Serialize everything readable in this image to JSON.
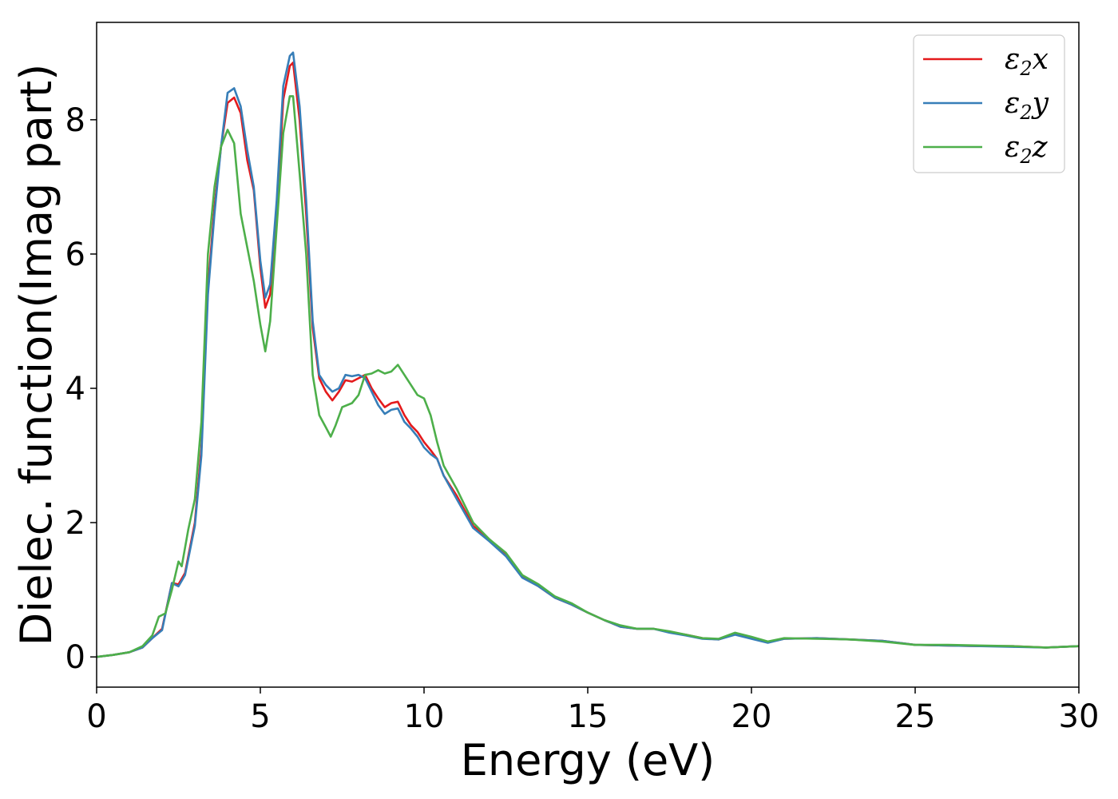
{
  "chart_data": {
    "type": "line",
    "title": "",
    "xlabel": "Energy (eV)",
    "ylabel": "Dielec. function(Imag part)",
    "xlim": [
      0,
      30
    ],
    "ylim": [
      -0.45,
      9.45
    ],
    "xticks": [
      0,
      5,
      10,
      15,
      20,
      25,
      30
    ],
    "yticks": [
      0,
      2,
      4,
      6,
      8
    ],
    "grid": false,
    "legend_position": "top-right",
    "series": [
      {
        "name": "ε2x",
        "legend_base": "ε",
        "legend_sub": "2",
        "legend_suffix": "x",
        "color": "#e41a1c",
        "points": [
          [
            0,
            0
          ],
          [
            0.5,
            0.03
          ],
          [
            1.0,
            0.07
          ],
          [
            1.4,
            0.14
          ],
          [
            1.7,
            0.28
          ],
          [
            2.0,
            0.42
          ],
          [
            2.3,
            1.1
          ],
          [
            2.5,
            1.08
          ],
          [
            2.7,
            1.25
          ],
          [
            3.0,
            2.0
          ],
          [
            3.2,
            3.1
          ],
          [
            3.4,
            5.5
          ],
          [
            3.6,
            6.7
          ],
          [
            3.8,
            7.6
          ],
          [
            4.0,
            8.25
          ],
          [
            4.2,
            8.33
          ],
          [
            4.4,
            8.1
          ],
          [
            4.6,
            7.4
          ],
          [
            4.8,
            6.95
          ],
          [
            5.0,
            5.8
          ],
          [
            5.15,
            5.2
          ],
          [
            5.3,
            5.4
          ],
          [
            5.5,
            6.6
          ],
          [
            5.7,
            8.3
          ],
          [
            5.9,
            8.8
          ],
          [
            6.0,
            8.85
          ],
          [
            6.2,
            8.0
          ],
          [
            6.4,
            6.6
          ],
          [
            6.6,
            4.9
          ],
          [
            6.8,
            4.15
          ],
          [
            7.0,
            3.95
          ],
          [
            7.2,
            3.82
          ],
          [
            7.4,
            3.95
          ],
          [
            7.6,
            4.12
          ],
          [
            7.8,
            4.1
          ],
          [
            8.0,
            4.15
          ],
          [
            8.2,
            4.2
          ],
          [
            8.4,
            4.0
          ],
          [
            8.6,
            3.85
          ],
          [
            8.8,
            3.72
          ],
          [
            9.0,
            3.78
          ],
          [
            9.2,
            3.8
          ],
          [
            9.4,
            3.6
          ],
          [
            9.6,
            3.45
          ],
          [
            9.8,
            3.35
          ],
          [
            10.0,
            3.2
          ],
          [
            10.2,
            3.08
          ],
          [
            10.4,
            2.95
          ],
          [
            10.6,
            2.7
          ],
          [
            11.0,
            2.4
          ],
          [
            11.5,
            1.95
          ],
          [
            12.0,
            1.75
          ],
          [
            12.5,
            1.52
          ],
          [
            13.0,
            1.2
          ],
          [
            13.5,
            1.05
          ],
          [
            14.0,
            0.88
          ],
          [
            14.5,
            0.78
          ],
          [
            15.0,
            0.66
          ],
          [
            15.5,
            0.55
          ],
          [
            16.0,
            0.45
          ],
          [
            16.5,
            0.42
          ],
          [
            17.0,
            0.42
          ],
          [
            17.5,
            0.37
          ],
          [
            18.0,
            0.33
          ],
          [
            18.5,
            0.28
          ],
          [
            19.0,
            0.26
          ],
          [
            19.5,
            0.34
          ],
          [
            20.0,
            0.28
          ],
          [
            20.5,
            0.22
          ],
          [
            21.0,
            0.27
          ],
          [
            22.0,
            0.28
          ],
          [
            23.0,
            0.26
          ],
          [
            24.0,
            0.24
          ],
          [
            25.0,
            0.18
          ],
          [
            26.0,
            0.17
          ],
          [
            27.0,
            0.16
          ],
          [
            28.0,
            0.16
          ],
          [
            29.0,
            0.14
          ],
          [
            30.0,
            0.16
          ]
        ]
      },
      {
        "name": "ε2y",
        "legend_base": "ε",
        "legend_sub": "2",
        "legend_suffix": "y",
        "color": "#377eb8",
        "points": [
          [
            0,
            0
          ],
          [
            0.5,
            0.03
          ],
          [
            1.0,
            0.07
          ],
          [
            1.4,
            0.14
          ],
          [
            1.7,
            0.28
          ],
          [
            2.0,
            0.4
          ],
          [
            2.3,
            1.1
          ],
          [
            2.5,
            1.05
          ],
          [
            2.7,
            1.22
          ],
          [
            3.0,
            1.95
          ],
          [
            3.2,
            3.0
          ],
          [
            3.4,
            5.4
          ],
          [
            3.6,
            6.6
          ],
          [
            3.8,
            7.6
          ],
          [
            4.0,
            8.4
          ],
          [
            4.2,
            8.47
          ],
          [
            4.4,
            8.2
          ],
          [
            4.6,
            7.55
          ],
          [
            4.8,
            7.0
          ],
          [
            5.0,
            5.9
          ],
          [
            5.15,
            5.35
          ],
          [
            5.3,
            5.55
          ],
          [
            5.5,
            6.8
          ],
          [
            5.7,
            8.5
          ],
          [
            5.9,
            8.95
          ],
          [
            6.0,
            9.0
          ],
          [
            6.2,
            8.2
          ],
          [
            6.4,
            6.8
          ],
          [
            6.6,
            5.0
          ],
          [
            6.8,
            4.2
          ],
          [
            7.0,
            4.05
          ],
          [
            7.2,
            3.95
          ],
          [
            7.4,
            4.0
          ],
          [
            7.6,
            4.2
          ],
          [
            7.8,
            4.18
          ],
          [
            8.0,
            4.2
          ],
          [
            8.2,
            4.15
          ],
          [
            8.4,
            3.95
          ],
          [
            8.6,
            3.75
          ],
          [
            8.8,
            3.62
          ],
          [
            9.0,
            3.68
          ],
          [
            9.2,
            3.7
          ],
          [
            9.4,
            3.5
          ],
          [
            9.6,
            3.4
          ],
          [
            9.8,
            3.28
          ],
          [
            10.0,
            3.12
          ],
          [
            10.2,
            3.02
          ],
          [
            10.4,
            2.95
          ],
          [
            10.6,
            2.7
          ],
          [
            11.0,
            2.35
          ],
          [
            11.5,
            1.92
          ],
          [
            12.0,
            1.72
          ],
          [
            12.5,
            1.5
          ],
          [
            13.0,
            1.18
          ],
          [
            13.5,
            1.05
          ],
          [
            14.0,
            0.88
          ],
          [
            14.5,
            0.78
          ],
          [
            15.0,
            0.66
          ],
          [
            15.5,
            0.55
          ],
          [
            16.0,
            0.45
          ],
          [
            16.5,
            0.42
          ],
          [
            17.0,
            0.42
          ],
          [
            17.5,
            0.36
          ],
          [
            18.0,
            0.32
          ],
          [
            18.5,
            0.27
          ],
          [
            19.0,
            0.26
          ],
          [
            19.5,
            0.33
          ],
          [
            20.0,
            0.27
          ],
          [
            20.5,
            0.21
          ],
          [
            21.0,
            0.27
          ],
          [
            22.0,
            0.28
          ],
          [
            23.0,
            0.26
          ],
          [
            24.0,
            0.24
          ],
          [
            25.0,
            0.18
          ],
          [
            26.0,
            0.17
          ],
          [
            27.0,
            0.16
          ],
          [
            28.0,
            0.15
          ],
          [
            29.0,
            0.14
          ],
          [
            30.0,
            0.16
          ]
        ]
      },
      {
        "name": "ε2z",
        "legend_base": "ε",
        "legend_sub": "2",
        "legend_suffix": "z",
        "color": "#4daf4a",
        "points": [
          [
            0,
            0
          ],
          [
            0.5,
            0.03
          ],
          [
            1.0,
            0.07
          ],
          [
            1.4,
            0.16
          ],
          [
            1.7,
            0.32
          ],
          [
            1.9,
            0.6
          ],
          [
            2.1,
            0.65
          ],
          [
            2.3,
            1.0
          ],
          [
            2.5,
            1.42
          ],
          [
            2.6,
            1.35
          ],
          [
            2.8,
            1.9
          ],
          [
            3.0,
            2.35
          ],
          [
            3.2,
            3.5
          ],
          [
            3.4,
            6.0
          ],
          [
            3.6,
            7.0
          ],
          [
            3.8,
            7.6
          ],
          [
            4.0,
            7.85
          ],
          [
            4.2,
            7.65
          ],
          [
            4.4,
            6.6
          ],
          [
            4.6,
            6.1
          ],
          [
            4.8,
            5.6
          ],
          [
            5.0,
            4.95
          ],
          [
            5.15,
            4.55
          ],
          [
            5.3,
            5.0
          ],
          [
            5.5,
            6.4
          ],
          [
            5.7,
            7.8
          ],
          [
            5.9,
            8.35
          ],
          [
            6.0,
            8.35
          ],
          [
            6.2,
            7.2
          ],
          [
            6.4,
            6.0
          ],
          [
            6.6,
            4.2
          ],
          [
            6.8,
            3.6
          ],
          [
            7.0,
            3.42
          ],
          [
            7.15,
            3.28
          ],
          [
            7.3,
            3.45
          ],
          [
            7.5,
            3.72
          ],
          [
            7.8,
            3.78
          ],
          [
            8.0,
            3.9
          ],
          [
            8.2,
            4.2
          ],
          [
            8.4,
            4.22
          ],
          [
            8.6,
            4.27
          ],
          [
            8.8,
            4.22
          ],
          [
            9.0,
            4.25
          ],
          [
            9.2,
            4.35
          ],
          [
            9.4,
            4.2
          ],
          [
            9.6,
            4.05
          ],
          [
            9.8,
            3.9
          ],
          [
            10.0,
            3.85
          ],
          [
            10.2,
            3.6
          ],
          [
            10.4,
            3.2
          ],
          [
            10.6,
            2.85
          ],
          [
            11.0,
            2.5
          ],
          [
            11.5,
            2.0
          ],
          [
            12.0,
            1.75
          ],
          [
            12.5,
            1.55
          ],
          [
            13.0,
            1.22
          ],
          [
            13.5,
            1.08
          ],
          [
            14.0,
            0.9
          ],
          [
            14.5,
            0.8
          ],
          [
            15.0,
            0.66
          ],
          [
            15.5,
            0.55
          ],
          [
            16.0,
            0.47
          ],
          [
            16.5,
            0.42
          ],
          [
            17.0,
            0.42
          ],
          [
            17.5,
            0.38
          ],
          [
            18.0,
            0.33
          ],
          [
            18.5,
            0.28
          ],
          [
            19.0,
            0.27
          ],
          [
            19.5,
            0.36
          ],
          [
            20.0,
            0.3
          ],
          [
            20.5,
            0.23
          ],
          [
            21.0,
            0.28
          ],
          [
            22.0,
            0.27
          ],
          [
            23.0,
            0.26
          ],
          [
            24.0,
            0.23
          ],
          [
            25.0,
            0.18
          ],
          [
            26.0,
            0.18
          ],
          [
            27.0,
            0.17
          ],
          [
            28.0,
            0.16
          ],
          [
            29.0,
            0.14
          ],
          [
            30.0,
            0.16
          ]
        ]
      }
    ]
  }
}
